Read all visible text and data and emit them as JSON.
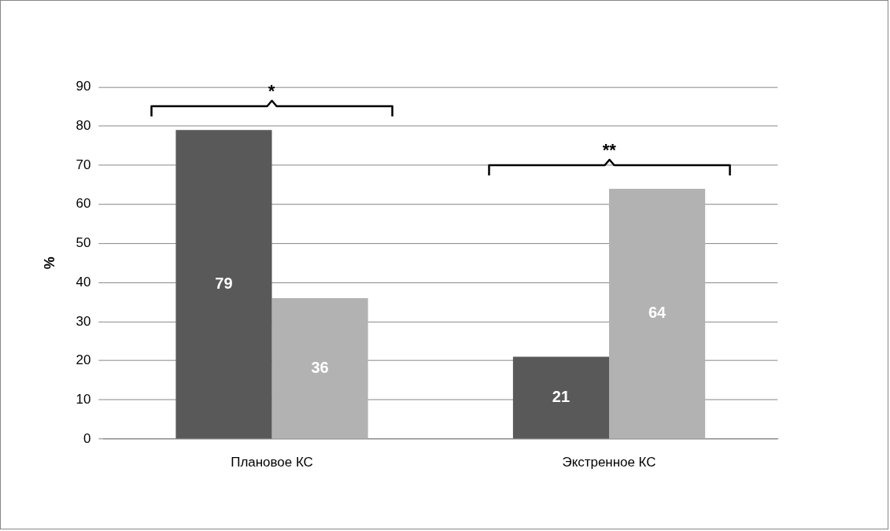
{
  "chart_data": {
    "type": "bar",
    "ylabel": "%",
    "categories": [
      "Плановое КС",
      "Экстренное КС"
    ],
    "series": [
      {
        "color": "#595959",
        "values": [
          79,
          21
        ]
      },
      {
        "color": "#b2b2b2",
        "values": [
          36,
          64
        ]
      }
    ],
    "ylim": [
      0,
      90
    ],
    "yticks": [
      0,
      10,
      20,
      30,
      40,
      50,
      60,
      70,
      80,
      90
    ],
    "grid": "y",
    "data_labels": true,
    "annotations": [
      "*",
      "**"
    ]
  }
}
